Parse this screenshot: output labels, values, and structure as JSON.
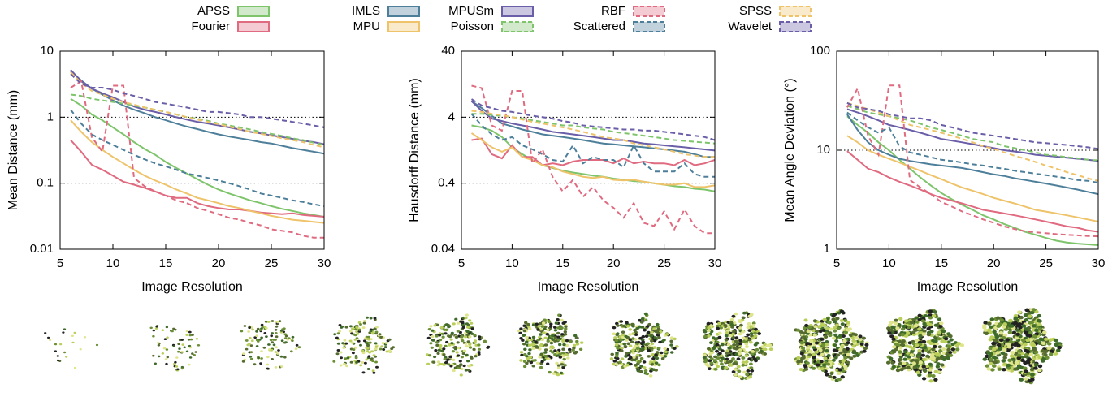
{
  "chart_data": [
    {
      "type": "line",
      "xlabel": "Image Resolution",
      "ylabel": "Mean Distance (mm)",
      "log_y": true,
      "grid": true,
      "x": [
        6,
        7,
        8,
        9,
        10,
        11,
        12,
        13,
        14,
        15,
        16,
        17,
        18,
        19,
        20,
        21,
        22,
        23,
        24,
        25,
        26,
        27,
        28,
        29,
        30
      ],
      "xlim": [
        5,
        30
      ],
      "xticks": [
        5,
        10,
        15,
        20,
        25,
        30
      ],
      "ylim": [
        0.01,
        10
      ],
      "yticks": [
        0.01,
        0.1,
        1,
        10
      ],
      "series": [
        {
          "name": "APSS",
          "color": "#7ec46b",
          "dashed": false,
          "values": [
            1.9,
            1.5,
            1.1,
            0.9,
            0.7,
            0.55,
            0.42,
            0.33,
            0.27,
            0.21,
            0.17,
            0.14,
            0.115,
            0.095,
            0.08,
            0.07,
            0.062,
            0.055,
            0.05,
            0.045,
            0.041,
            0.038,
            0.035,
            0.033,
            0.031
          ]
        },
        {
          "name": "Fourier",
          "color": "#e06a7f",
          "dashed": false,
          "values": [
            0.45,
            0.3,
            0.19,
            0.16,
            0.13,
            0.105,
            0.095,
            0.085,
            0.075,
            0.065,
            0.06,
            0.06,
            0.05,
            0.045,
            0.042,
            0.04,
            0.04,
            0.038,
            0.036,
            0.035,
            0.034,
            0.035,
            0.033,
            0.032,
            0.031
          ]
        },
        {
          "name": "IMLS",
          "color": "#4e7f9a",
          "dashed": false,
          "values": [
            5,
            3.6,
            2.7,
            2.2,
            1.8,
            1.5,
            1.3,
            1.15,
            1.0,
            0.9,
            0.8,
            0.72,
            0.66,
            0.6,
            0.55,
            0.51,
            0.48,
            0.45,
            0.42,
            0.4,
            0.37,
            0.34,
            0.32,
            0.3,
            0.28
          ]
        },
        {
          "name": "MPU",
          "color": "#eec36a",
          "dashed": false,
          "values": [
            0.9,
            0.6,
            0.42,
            0.32,
            0.25,
            0.2,
            0.16,
            0.13,
            0.11,
            0.095,
            0.08,
            0.07,
            0.06,
            0.055,
            0.05,
            0.045,
            0.042,
            0.038,
            0.035,
            0.032,
            0.03,
            0.028,
            0.027,
            0.026,
            0.025
          ]
        },
        {
          "name": "MPUSm",
          "color": "#6a5ea8",
          "dashed": false,
          "values": [
            5.2,
            3.5,
            2.7,
            2.3,
            2.0,
            1.7,
            1.45,
            1.3,
            1.2,
            1.1,
            1.0,
            0.92,
            0.85,
            0.8,
            0.75,
            0.7,
            0.65,
            0.6,
            0.57,
            0.53,
            0.5,
            0.47,
            0.44,
            0.42,
            0.39
          ]
        },
        {
          "name": "Poisson",
          "color": "#7ec46b",
          "dashed": true,
          "values": [
            2.2,
            2.1,
            1.9,
            1.8,
            1.7,
            1.6,
            1.5,
            1.4,
            1.3,
            1.2,
            1.1,
            1.0,
            0.95,
            0.88,
            0.8,
            0.75,
            0.7,
            0.65,
            0.6,
            0.56,
            0.52,
            0.48,
            0.45,
            0.41,
            0.38
          ]
        },
        {
          "name": "RBF",
          "color": "#e06a7f",
          "dashed": true,
          "values": [
            2.8,
            3.5,
            0.5,
            0.3,
            3.0,
            3.0,
            0.12,
            0.09,
            0.075,
            0.065,
            0.055,
            0.05,
            0.042,
            0.038,
            0.034,
            0.03,
            0.028,
            0.025,
            0.023,
            0.02,
            0.019,
            0.018,
            0.016,
            0.015,
            0.015
          ]
        },
        {
          "name": "Scattered",
          "color": "#4e7f9a",
          "dashed": true,
          "values": [
            1.3,
            0.8,
            0.55,
            0.45,
            0.38,
            0.32,
            0.27,
            0.23,
            0.2,
            0.18,
            0.16,
            0.14,
            0.13,
            0.12,
            0.11,
            0.1,
            0.09,
            0.08,
            0.07,
            0.065,
            0.06,
            0.055,
            0.052,
            0.048,
            0.045
          ]
        },
        {
          "name": "SPSS",
          "color": "#eec36a",
          "dashed": true,
          "values": [
            4.8,
            3.3,
            2.5,
            2.2,
            1.9,
            1.7,
            1.55,
            1.4,
            1.3,
            1.2,
            1.1,
            1.0,
            0.92,
            0.85,
            0.78,
            0.72,
            0.66,
            0.6,
            0.56,
            0.52,
            0.48,
            0.45,
            0.42,
            0.38,
            0.35
          ]
        },
        {
          "name": "Wavelet",
          "color": "#6a5ea8",
          "dashed": true,
          "values": [
            4.5,
            3.2,
            2.8,
            2.8,
            2.6,
            2.3,
            2.1,
            1.9,
            1.7,
            1.6,
            1.5,
            1.4,
            1.3,
            1.2,
            1.2,
            1.15,
            1.1,
            1.0,
            1.0,
            0.95,
            0.9,
            0.85,
            0.8,
            0.75,
            0.7
          ]
        }
      ]
    },
    {
      "type": "line",
      "xlabel": "Image Resolution",
      "ylabel": "Hausdorff Distance (mm)",
      "log_y": true,
      "grid": true,
      "x": [
        6,
        7,
        8,
        9,
        10,
        11,
        12,
        13,
        14,
        15,
        16,
        17,
        18,
        19,
        20,
        21,
        22,
        23,
        24,
        25,
        26,
        27,
        28,
        29,
        30
      ],
      "xlim": [
        5,
        30
      ],
      "xticks": [
        5,
        10,
        15,
        20,
        25,
        30
      ],
      "ylim": [
        0.04,
        40
      ],
      "yticks": [
        0.04,
        0.4,
        4,
        40
      ],
      "series": [
        {
          "color": "#7ec46b",
          "dashed": false,
          "values": [
            3.0,
            2.8,
            2.5,
            2.0,
            1.4,
            1.1,
            0.9,
            0.75,
            0.68,
            0.62,
            0.58,
            0.55,
            0.52,
            0.5,
            0.47,
            0.45,
            0.43,
            0.42,
            0.4,
            0.38,
            0.36,
            0.35,
            0.33,
            0.32,
            0.3
          ]
        },
        {
          "color": "#e06a7f",
          "dashed": false,
          "values": [
            1.8,
            1.9,
            1.1,
            0.95,
            1.5,
            1.0,
            1.0,
            0.75,
            0.8,
            0.75,
            0.85,
            0.9,
            0.9,
            0.9,
            0.8,
            0.95,
            0.8,
            0.85,
            0.8,
            0.8,
            0.75,
            0.9,
            0.75,
            0.8,
            0.9
          ]
        },
        {
          "color": "#4e7f9a",
          "dashed": false,
          "values": [
            7,
            5.5,
            4.2,
            3.2,
            2.9,
            2.6,
            2.4,
            2.2,
            2.1,
            2.0,
            1.9,
            1.8,
            1.7,
            1.6,
            1.55,
            1.5,
            1.45,
            1.4,
            1.35,
            1.3,
            1.25,
            1.2,
            1.1,
            1.0,
            1.0
          ]
        },
        {
          "color": "#eec36a",
          "dashed": false,
          "values": [
            2.3,
            1.8,
            1.4,
            1.2,
            1.4,
            1.0,
            0.9,
            0.75,
            0.7,
            0.6,
            0.55,
            0.5,
            0.48,
            0.5,
            0.45,
            0.44,
            0.45,
            0.42,
            0.4,
            0.38,
            0.38,
            0.4,
            0.35,
            0.35,
            0.37
          ]
        },
        {
          "color": "#6a5ea8",
          "dashed": false,
          "values": [
            7,
            5,
            3.8,
            3.5,
            3.2,
            3.0,
            2.8,
            2.6,
            2.4,
            2.3,
            2.2,
            2.1,
            2.0,
            1.9,
            1.8,
            1.8,
            1.7,
            1.6,
            1.55,
            1.5,
            1.45,
            1.4,
            1.35,
            1.3,
            1.25
          ]
        },
        {
          "color": "#7ec46b",
          "dashed": true,
          "values": [
            4.5,
            4.5,
            4.3,
            4.2,
            4.0,
            3.8,
            3.6,
            3.4,
            3.2,
            3.0,
            3.0,
            2.8,
            2.7,
            2.6,
            2.4,
            2.3,
            2.2,
            2.1,
            2.0,
            1.9,
            1.8,
            1.75,
            1.7,
            1.65,
            1.6
          ]
        },
        {
          "color": "#e06a7f",
          "dashed": true,
          "values": [
            12,
            11,
            3,
            2.5,
            10,
            10,
            0.8,
            1.3,
            0.5,
            0.3,
            0.45,
            0.25,
            0.35,
            0.22,
            0.17,
            0.12,
            0.2,
            0.1,
            0.09,
            0.15,
            0.08,
            0.16,
            0.09,
            0.07,
            0.07
          ]
        },
        {
          "color": "#4e7f9a",
          "dashed": true,
          "values": [
            4.5,
            3.0,
            2.2,
            1.8,
            2.0,
            1.5,
            1.3,
            1.1,
            0.9,
            0.85,
            1.5,
            0.8,
            1.0,
            0.9,
            0.9,
            0.7,
            1.5,
            0.8,
            0.6,
            0.6,
            0.6,
            0.8,
            0.55,
            0.5,
            0.5
          ]
        },
        {
          "color": "#eec36a",
          "dashed": true,
          "values": [
            5,
            4.8,
            4.5,
            4.3,
            4.0,
            3.7,
            3.4,
            3.2,
            3.0,
            2.8,
            2.6,
            2.4,
            2.2,
            2.0,
            1.9,
            1.8,
            1.6,
            1.5,
            1.4,
            1.3,
            1.2,
            1.1,
            1.05,
            1.0,
            1.0
          ]
        },
        {
          "color": "#6a5ea8",
          "dashed": true,
          "values": [
            7.5,
            6,
            5.5,
            5,
            4.8,
            4.5,
            4.2,
            4.0,
            3.8,
            3.5,
            3.3,
            3.0,
            2.9,
            2.8,
            2.7,
            2.6,
            2.6,
            2.5,
            2.5,
            2.4,
            2.3,
            2.2,
            2.1,
            2.0,
            1.8
          ]
        }
      ]
    },
    {
      "type": "line",
      "xlabel": "Image Resolution",
      "ylabel": "Mean Angle Deviation (°)",
      "log_y": true,
      "grid": true,
      "x": [
        6,
        7,
        8,
        9,
        10,
        11,
        12,
        13,
        14,
        15,
        16,
        17,
        18,
        19,
        20,
        21,
        22,
        23,
        24,
        25,
        26,
        27,
        28,
        29,
        30
      ],
      "xlim": [
        5,
        30
      ],
      "xticks": [
        5,
        10,
        15,
        20,
        25,
        30
      ],
      "ylim": [
        1,
        100
      ],
      "yticks": [
        1,
        10,
        100
      ],
      "series": [
        {
          "color": "#7ec46b",
          "dashed": false,
          "values": [
            22,
            18,
            15,
            12,
            10,
            8,
            6.5,
            5.3,
            4.4,
            3.7,
            3.2,
            2.8,
            2.5,
            2.2,
            2.0,
            1.8,
            1.65,
            1.5,
            1.4,
            1.3,
            1.22,
            1.17,
            1.14,
            1.12,
            1.1
          ]
        },
        {
          "color": "#e06a7f",
          "dashed": false,
          "values": [
            9.8,
            8,
            6.5,
            6,
            5.3,
            4.8,
            4.4,
            4.0,
            3.6,
            3.3,
            3.1,
            2.9,
            2.7,
            2.5,
            2.4,
            2.3,
            2.2,
            2.1,
            2.0,
            1.9,
            1.8,
            1.7,
            1.65,
            1.55,
            1.5
          ]
        },
        {
          "color": "#4e7f9a",
          "dashed": false,
          "values": [
            23,
            16,
            12,
            10,
            9,
            8.2,
            7.8,
            7.5,
            7.2,
            7.0,
            6.8,
            6.6,
            6.3,
            6.0,
            5.7,
            5.5,
            5.2,
            5.0,
            4.8,
            4.6,
            4.4,
            4.2,
            4.0,
            3.8,
            3.6
          ]
        },
        {
          "color": "#eec36a",
          "dashed": false,
          "values": [
            14,
            12,
            10,
            9,
            8.2,
            7.5,
            6.8,
            6.2,
            5.6,
            5.1,
            4.6,
            4.2,
            3.9,
            3.6,
            3.3,
            3.1,
            2.9,
            2.7,
            2.5,
            2.4,
            2.3,
            2.2,
            2.1,
            2.0,
            1.9
          ]
        },
        {
          "color": "#6a5ea8",
          "dashed": false,
          "values": [
            26,
            24,
            22,
            20,
            18,
            17,
            16,
            15,
            14,
            13,
            12.5,
            12,
            11.5,
            11,
            10.5,
            10,
            9.7,
            9.4,
            9.0,
            8.8,
            8.6,
            8.4,
            8.2,
            8.0,
            7.8
          ]
        },
        {
          "color": "#7ec46b",
          "dashed": true,
          "values": [
            28,
            26,
            24,
            23,
            22,
            21,
            20,
            18.5,
            17,
            16,
            15,
            14,
            13,
            12.5,
            12,
            11,
            10.5,
            10,
            9.5,
            9,
            8.8,
            8.5,
            8.3,
            8.0,
            7.9
          ]
        },
        {
          "color": "#e06a7f",
          "dashed": true,
          "values": [
            27,
            42,
            14,
            9,
            45,
            45,
            5,
            4.2,
            3.6,
            3.0,
            2.7,
            2.4,
            2.2,
            2.0,
            1.85,
            1.7,
            1.6,
            1.52,
            1.48,
            1.45,
            1.42,
            1.4,
            1.38,
            1.36,
            1.35
          ]
        },
        {
          "color": "#4e7f9a",
          "dashed": true,
          "values": [
            24,
            20,
            17,
            15,
            17,
            11,
            9.5,
            9,
            8.5,
            8.0,
            7.8,
            7.5,
            7.2,
            7.0,
            6.7,
            6.5,
            6.2,
            6.0,
            5.8,
            5.6,
            5.4,
            5.2,
            5.0,
            4.9,
            4.7
          ]
        },
        {
          "color": "#eec36a",
          "dashed": true,
          "values": [
            30,
            28,
            26,
            24,
            22,
            20,
            18,
            17,
            16,
            15,
            14,
            13,
            12,
            11,
            10.3,
            9.5,
            8.8,
            8.2,
            7.6,
            7,
            6.5,
            6,
            5.6,
            5.2,
            4.9
          ]
        },
        {
          "color": "#6a5ea8",
          "dashed": true,
          "values": [
            30,
            27,
            26,
            25,
            23,
            22,
            21,
            21,
            20,
            18,
            17,
            16,
            15,
            14.5,
            14,
            13.5,
            13,
            12.5,
            12,
            11.8,
            11.5,
            11.3,
            11,
            10.7,
            10.3
          ]
        }
      ]
    }
  ]
}
